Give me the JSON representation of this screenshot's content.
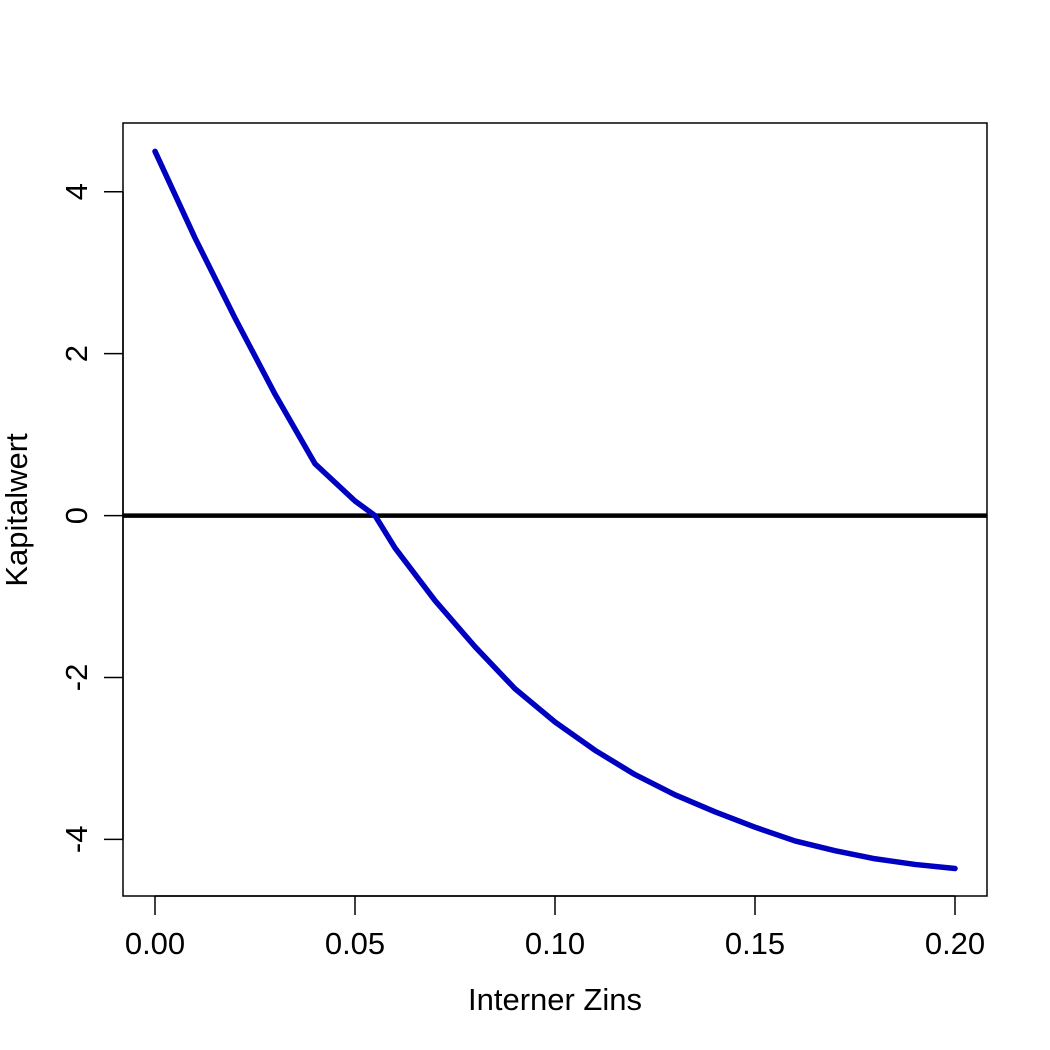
{
  "chart_data": {
    "type": "line",
    "title": "",
    "xlabel": "Interner Zins",
    "ylabel": "Kapitalwert",
    "xlim": [
      -0.008,
      0.208
    ],
    "ylim": [
      -4.7,
      4.85
    ],
    "x_ticks": [
      "0.00",
      "0.05",
      "0.10",
      "0.15",
      "0.20"
    ],
    "y_ticks": [
      "-4",
      "-2",
      "0",
      "2",
      "4"
    ],
    "grid": false,
    "legend": "none",
    "reference_line": {
      "y": 0,
      "color": "#000000"
    },
    "series": [
      {
        "color": "#0000c0",
        "x": [
          0.0,
          0.01,
          0.02,
          0.03,
          0.04,
          0.05,
          0.055,
          0.06,
          0.07,
          0.08,
          0.09,
          0.1,
          0.11,
          0.12,
          0.13,
          0.14,
          0.15,
          0.16,
          0.17,
          0.18,
          0.19,
          0.2
        ],
        "y": [
          4.5,
          3.43,
          2.44,
          1.5,
          0.64,
          0.18,
          0.0,
          -0.4,
          -1.05,
          -1.62,
          -2.14,
          -2.55,
          -2.9,
          -3.2,
          -3.45,
          -3.66,
          -3.85,
          -4.02,
          -4.14,
          -4.24,
          -4.31,
          -4.36
        ]
      }
    ]
  }
}
